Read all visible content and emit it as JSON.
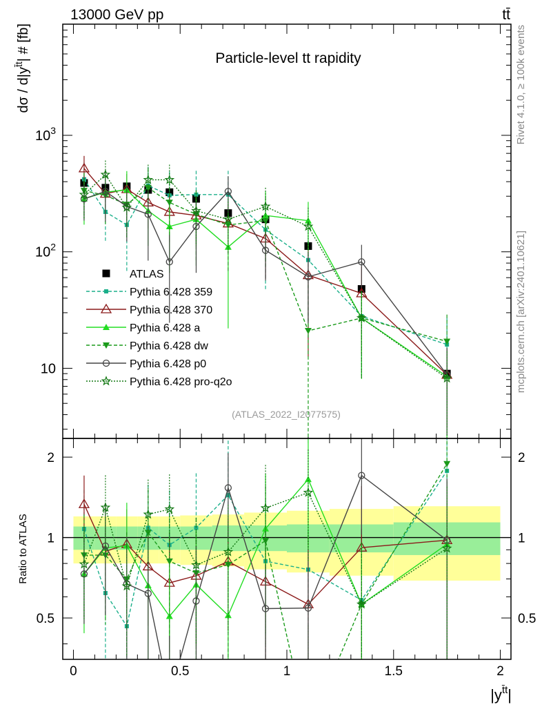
{
  "header": {
    "left": "13000 GeV pp",
    "right": "tt̄"
  },
  "side_labels": {
    "top": "Rivet 4.1.0, ≥ 100k events",
    "bottom": "mcplots.cern.ch [arXiv:2401.10621]"
  },
  "colors": {
    "ATLAS": "#000000",
    "p359": "#1aaf8a",
    "p370": "#8b1a1a",
    "pa": "#22dd22",
    "pdw": "#1a9a1a",
    "pp0": "#444444",
    "pq2o": "#117711",
    "band_inner": "#99ee99",
    "band_outer": "#ffff99",
    "watermark": "#9a9a9a"
  },
  "chart_data": {
    "type": "scatter",
    "title": "Particle-level t̄t rapidity",
    "title_main": "Particle-level t",
    "title_t": "t",
    "title_end": " rapidity",
    "watermark": "(ATLAS_2022_I2077575)",
    "ylabel_main": "dσ / d|y",
    "ylabel_sup": "t̄t",
    "ylabel_end": "| # [fb]",
    "ratio_ylabel": "Ratio to ATLAS",
    "xlabel_main": "|y",
    "xlabel_sup": "t̄t",
    "xlabel_end": "|",
    "xlim": [
      -0.05,
      2.05
    ],
    "ylim_main": [
      2.5,
      9000
    ],
    "ylim_ratio": [
      0.35,
      2.35
    ],
    "log_y": true,
    "x_ticks": [
      0,
      0.5,
      1,
      1.5,
      2
    ],
    "x_tick_labels": [
      "0",
      "0.5",
      "1",
      "1.5",
      "2"
    ],
    "y_major_ticks": [
      10,
      100,
      1000
    ],
    "y_tick_labels": [
      {
        "base": "10",
        "exp": ""
      },
      {
        "base": "10",
        "exp": "2"
      },
      {
        "base": "10",
        "exp": "3"
      }
    ],
    "ratio_ticks": [
      0.5,
      1,
      2
    ],
    "ratio_tick_labels": [
      "0.5",
      "1",
      "2"
    ],
    "bins": [
      [
        0,
        0.1
      ],
      [
        0.1,
        0.2
      ],
      [
        0.2,
        0.3
      ],
      [
        0.3,
        0.4
      ],
      [
        0.4,
        0.5
      ],
      [
        0.5,
        0.65
      ],
      [
        0.65,
        0.8
      ],
      [
        0.8,
        1.0
      ],
      [
        1.0,
        1.2
      ],
      [
        1.2,
        1.5
      ],
      [
        1.5,
        2.0
      ]
    ],
    "x": [
      0.05,
      0.15,
      0.25,
      0.35,
      0.45,
      0.575,
      0.725,
      0.9,
      1.1,
      1.35,
      1.75
    ],
    "band_inner": [
      0.1,
      0.1,
      0.1,
      0.1,
      0.1,
      0.1,
      0.11,
      0.11,
      0.12,
      0.12,
      0.14
    ],
    "band_outer": [
      0.2,
      0.2,
      0.2,
      0.2,
      0.2,
      0.21,
      0.22,
      0.24,
      0.26,
      0.28,
      0.31
    ],
    "series": [
      {
        "name": "ATLAS",
        "key": "ATLAS",
        "legend": "ATLAS",
        "values": [
          390,
          355,
          365,
          340,
          325,
          285,
          215,
          190,
          112,
          48,
          9
        ],
        "err": [
          0.04,
          0.04,
          0.04,
          0.04,
          0.04,
          0.04,
          0.04,
          0.05,
          0.06,
          0.08,
          0.08
        ],
        "marker": "square-filled",
        "line": "none"
      },
      {
        "name": "Pythia 6.428 359",
        "key": "p359",
        "legend": "Pythia 6.428 359",
        "values": [
          420,
          220,
          170,
          370,
          305,
          310,
          310,
          155,
          85,
          28,
          16
        ],
        "err": [
          0.4,
          0.45,
          0.6,
          0.45,
          0.6,
          0.6,
          0.6,
          0.7,
          0.8,
          0.7,
          0.7
        ],
        "marker": "square-small",
        "line": "dashed"
      },
      {
        "name": "Pythia 6.428 370",
        "key": "p370",
        "legend": "Pythia 6.428 370",
        "values": [
          520,
          315,
          345,
          265,
          220,
          205,
          175,
          130,
          63,
          44,
          8.8
        ],
        "err": [
          0.28,
          0.35,
          0.35,
          0.4,
          0.45,
          0.45,
          0.45,
          0.55,
          0.8,
          0.7,
          0.65
        ],
        "marker": "triangle-open",
        "line": "solid"
      },
      {
        "name": "Pythia 6.428 a",
        "key": "pa",
        "legend": "Pythia 6.428 a",
        "values": [
          285,
          325,
          340,
          225,
          165,
          190,
          110,
          205,
          185,
          27,
          8.5
        ],
        "err": [
          0.4,
          0.45,
          0.45,
          0.5,
          0.6,
          0.6,
          0.8,
          0.6,
          0.45,
          0.7,
          0.7
        ],
        "marker": "triangle-filled",
        "line": "solid"
      },
      {
        "name": "Pythia 6.428 dw",
        "key": "pdw",
        "legend": "Pythia 6.428 dw",
        "values": [
          335,
          305,
          255,
          355,
          265,
          210,
          170,
          185,
          21,
          27,
          17
        ],
        "err": [
          0.42,
          0.45,
          0.5,
          0.45,
          0.5,
          0.6,
          0.6,
          0.6,
          1.5,
          0.7,
          0.7
        ],
        "marker": "triangle-down-filled",
        "line": "dashed"
      },
      {
        "name": "Pythia 6.428 p0",
        "key": "pp0",
        "legend": "Pythia 6.428 p0",
        "values": [
          285,
          330,
          245,
          210,
          82,
          165,
          330,
          103,
          61,
          82,
          8.8
        ],
        "err": [
          0.35,
          0.45,
          0.5,
          0.6,
          0.7,
          0.6,
          0.35,
          0.45,
          0.6,
          0.4,
          0.7
        ],
        "marker": "circle-open",
        "line": "solid"
      },
      {
        "name": "Pythia 6.428 pro-q2o",
        "key": "pq2o",
        "legend": "Pythia 6.428 pro-q2o",
        "values": [
          310,
          460,
          240,
          415,
          415,
          225,
          190,
          245,
          165,
          27,
          8.2
        ],
        "err": [
          0.38,
          0.32,
          0.45,
          0.35,
          0.35,
          0.5,
          0.5,
          0.45,
          0.45,
          0.7,
          0.7
        ],
        "marker": "star",
        "line": "dotted"
      }
    ]
  }
}
